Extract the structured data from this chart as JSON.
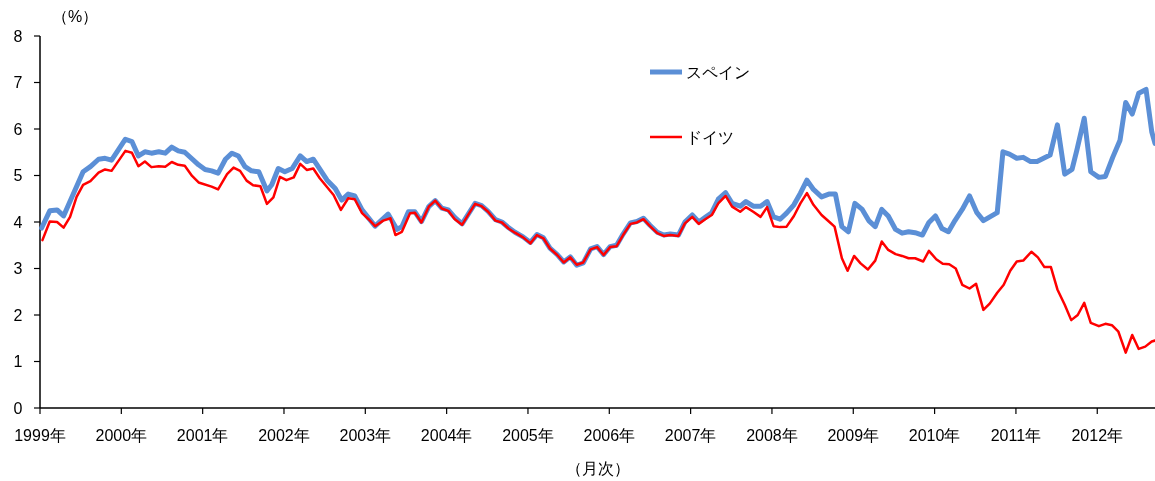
{
  "chart_data": {
    "type": "line",
    "xlabel": "（月次）",
    "ylabel": "（%）",
    "xlim": [
      1999,
      2012.71
    ],
    "xticks": [
      {
        "value": 1999,
        "label": "1999年"
      },
      {
        "value": 2000,
        "label": "2000年"
      },
      {
        "value": 2001,
        "label": "2001年"
      },
      {
        "value": 2002,
        "label": "2002年"
      },
      {
        "value": 2003,
        "label": "2003年"
      },
      {
        "value": 2004,
        "label": "2004年"
      },
      {
        "value": 2005,
        "label": "2005年"
      },
      {
        "value": 2006,
        "label": "2006年"
      },
      {
        "value": 2007,
        "label": "2007年"
      },
      {
        "value": 2008,
        "label": "2008年"
      },
      {
        "value": 2009,
        "label": "2009年"
      },
      {
        "value": 2010,
        "label": "2010年"
      },
      {
        "value": 2011,
        "label": "2011年"
      },
      {
        "value": 2012,
        "label": "2012年"
      }
    ],
    "ylim": [
      0,
      8
    ],
    "yticks": [
      0,
      1,
      2,
      3,
      4,
      5,
      6,
      7,
      8
    ],
    "grid": false,
    "legend": "top right",
    "marker": "none",
    "line_style": "solid",
    "series": [
      {
        "name": "スペイン",
        "color": "#5b8fd6",
        "x": [
          1999.02,
          1999.12,
          1999.21,
          1999.29,
          1999.53,
          1999.62,
          1999.72,
          1999.8,
          1999.88,
          2000.05,
          2000.13,
          2000.21,
          2000.29,
          2000.37,
          2000.46,
          2000.54,
          2000.62,
          2000.7,
          2000.78,
          2000.95,
          2001.03,
          2001.11,
          2001.19,
          2001.28,
          2001.36,
          2001.44,
          2001.52,
          2001.6,
          2001.69,
          2001.79,
          2001.85,
          2001.93,
          2002.01,
          2002.1,
          2002.2,
          2002.28,
          2002.36,
          2002.53,
          2002.63,
          2002.71,
          2002.79,
          2002.87,
          2002.96,
          2003.12,
          2003.2,
          2003.28,
          2003.39,
          2003.45,
          2003.53,
          2003.61,
          2003.69,
          2003.78,
          2003.86,
          2003.94,
          2004.02,
          2004.1,
          2004.19,
          2004.27,
          2004.35,
          2004.43,
          2004.51,
          2004.6,
          2004.68,
          2004.76,
          2004.84,
          2004.94,
          2005.03,
          2005.11,
          2005.19,
          2005.27,
          2005.36,
          2005.44,
          2005.52,
          2005.6,
          2005.68,
          2005.77,
          2005.85,
          2005.93,
          2006.01,
          2006.09,
          2006.17,
          2006.26,
          2006.34,
          2006.42,
          2006.5,
          2006.59,
          2006.67,
          2006.75,
          2006.85,
          2006.93,
          2007.02,
          2007.1,
          2007.18,
          2007.26,
          2007.34,
          2007.43,
          2007.51,
          2007.61,
          2007.68,
          2007.77,
          2007.86,
          2007.94,
          2008.02,
          2008.1,
          2008.18,
          2008.27,
          2008.35,
          2008.43,
          2008.51,
          2008.61,
          2008.7,
          2008.78,
          2008.86,
          2008.94,
          2009.02,
          2009.11,
          2009.19,
          2009.27,
          2009.35,
          2009.43,
          2009.52,
          2009.6,
          2009.68,
          2009.76,
          2009.85,
          2009.93,
          2010.01,
          2010.09,
          2010.17,
          2010.25,
          2010.34,
          2010.43,
          2010.52,
          2010.6,
          2010.68,
          2010.77,
          2010.84,
          2010.92,
          2011.01,
          2011.09,
          2011.18,
          2011.26,
          2011.34,
          2011.42,
          2011.51,
          2011.6,
          2011.69,
          2011.75,
          2011.84,
          2011.92,
          2012.02,
          2012.1,
          2012.19,
          2012.28,
          2012.35,
          2012.43,
          2012.51,
          2012.6,
          2012.67,
          2012.71
        ],
        "values": [
          3.87,
          4.24,
          4.26,
          4.13,
          5.08,
          5.19,
          5.35,
          5.37,
          5.33,
          5.78,
          5.73,
          5.42,
          5.51,
          5.48,
          5.51,
          5.48,
          5.61,
          5.53,
          5.5,
          5.23,
          5.13,
          5.1,
          5.05,
          5.35,
          5.48,
          5.42,
          5.19,
          5.1,
          5.08,
          4.67,
          4.8,
          5.15,
          5.08,
          5.15,
          5.42,
          5.3,
          5.35,
          4.9,
          4.72,
          4.47,
          4.6,
          4.56,
          4.26,
          3.91,
          4.04,
          4.17,
          3.84,
          3.9,
          4.22,
          4.22,
          4.01,
          4.33,
          4.46,
          4.3,
          4.26,
          4.1,
          3.96,
          4.18,
          4.4,
          4.35,
          4.23,
          4.05,
          4.0,
          3.88,
          3.78,
          3.68,
          3.56,
          3.73,
          3.66,
          3.44,
          3.3,
          3.14,
          3.25,
          3.07,
          3.12,
          3.42,
          3.47,
          3.3,
          3.47,
          3.5,
          3.74,
          3.98,
          4.01,
          4.08,
          3.93,
          3.78,
          3.72,
          3.74,
          3.72,
          4.0,
          4.15,
          4.0,
          4.1,
          4.2,
          4.49,
          4.63,
          4.4,
          4.34,
          4.44,
          4.34,
          4.34,
          4.44,
          4.11,
          4.06,
          4.19,
          4.37,
          4.62,
          4.9,
          4.7,
          4.54,
          4.6,
          4.6,
          3.9,
          3.79,
          4.4,
          4.27,
          4.03,
          3.9,
          4.27,
          4.13,
          3.84,
          3.76,
          3.79,
          3.77,
          3.72,
          3.99,
          4.13,
          3.86,
          3.79,
          4.03,
          4.27,
          4.56,
          4.2,
          4.03,
          4.11,
          4.2,
          5.51,
          5.46,
          5.37,
          5.39,
          5.3,
          5.3,
          5.37,
          5.44,
          6.09,
          5.03,
          5.13,
          5.55,
          6.23,
          5.08,
          4.96,
          4.98,
          5.39,
          5.76,
          6.57,
          6.32,
          6.77,
          6.85,
          5.94,
          5.69
        ]
      },
      {
        "name": "ドイツ",
        "color": "#ff0000",
        "x": [
          1999.03,
          1999.12,
          1999.21,
          1999.29,
          1999.37,
          1999.45,
          1999.53,
          1999.62,
          1999.72,
          1999.8,
          1999.88,
          2000.05,
          2000.13,
          2000.21,
          2000.29,
          2000.37,
          2000.46,
          2000.54,
          2000.62,
          2000.7,
          2000.78,
          2000.87,
          2000.95,
          2001.11,
          2001.19,
          2001.3,
          2001.38,
          2001.46,
          2001.54,
          2001.62,
          2001.71,
          2001.79,
          2001.87,
          2001.95,
          2002.03,
          2002.12,
          2002.2,
          2002.28,
          2002.36,
          2002.44,
          2002.61,
          2002.7,
          2002.79,
          2002.87,
          2002.96,
          2003.04,
          2003.12,
          2003.22,
          2003.31,
          2003.37,
          2003.45,
          2003.55,
          2003.61,
          2003.69,
          2003.78,
          2003.86,
          2003.94,
          2004.02,
          2004.1,
          2004.19,
          2004.27,
          2004.35,
          2004.43,
          2004.51,
          2004.6,
          2004.68,
          2004.76,
          2004.84,
          2004.94,
          2005.03,
          2005.11,
          2005.19,
          2005.27,
          2005.36,
          2005.44,
          2005.52,
          2005.6,
          2005.68,
          2005.77,
          2005.85,
          2005.93,
          2006.01,
          2006.09,
          2006.17,
          2006.26,
          2006.34,
          2006.42,
          2006.5,
          2006.59,
          2006.67,
          2006.75,
          2006.85,
          2006.93,
          2007.02,
          2007.1,
          2007.18,
          2007.26,
          2007.34,
          2007.43,
          2007.51,
          2007.61,
          2007.68,
          2007.77,
          2007.86,
          2007.94,
          2008.02,
          2008.1,
          2008.18,
          2008.27,
          2008.35,
          2008.43,
          2008.51,
          2008.61,
          2008.7,
          2008.77,
          2008.86,
          2008.93,
          2009.01,
          2009.09,
          2009.18,
          2009.27,
          2009.35,
          2009.43,
          2009.52,
          2009.6,
          2009.68,
          2009.76,
          2009.86,
          2009.93,
          2010.02,
          2010.1,
          2010.18,
          2010.26,
          2010.34,
          2010.43,
          2010.51,
          2010.6,
          2010.68,
          2010.77,
          2010.85,
          2010.93,
          2011.01,
          2011.09,
          2011.19,
          2011.27,
          2011.35,
          2011.43,
          2011.51,
          2011.6,
          2011.68,
          2011.76,
          2011.84,
          2011.92,
          2012.02,
          2012.1,
          2012.18,
          2012.26,
          2012.35,
          2012.43,
          2012.51,
          2012.59,
          2012.67,
          2012.71
        ],
        "values": [
          3.61,
          4.01,
          4.0,
          3.88,
          4.11,
          4.54,
          4.8,
          4.88,
          5.06,
          5.13,
          5.1,
          5.53,
          5.49,
          5.2,
          5.3,
          5.18,
          5.2,
          5.19,
          5.29,
          5.23,
          5.21,
          4.99,
          4.85,
          4.76,
          4.7,
          5.03,
          5.17,
          5.1,
          4.89,
          4.79,
          4.77,
          4.39,
          4.53,
          4.97,
          4.9,
          4.96,
          5.25,
          5.12,
          5.15,
          4.94,
          4.58,
          4.26,
          4.51,
          4.49,
          4.19,
          4.06,
          3.91,
          4.03,
          4.08,
          3.72,
          3.79,
          4.19,
          4.2,
          3.99,
          4.33,
          4.46,
          4.29,
          4.24,
          4.06,
          3.94,
          4.17,
          4.39,
          4.34,
          4.22,
          4.03,
          3.99,
          3.86,
          3.77,
          3.67,
          3.54,
          3.72,
          3.65,
          3.43,
          3.29,
          3.13,
          3.24,
          3.08,
          3.13,
          3.41,
          3.46,
          3.29,
          3.46,
          3.48,
          3.72,
          3.96,
          3.99,
          4.06,
          3.91,
          3.76,
          3.7,
          3.72,
          3.7,
          3.97,
          4.11,
          3.96,
          4.06,
          4.15,
          4.4,
          4.56,
          4.33,
          4.22,
          4.32,
          4.22,
          4.11,
          4.32,
          3.91,
          3.89,
          3.9,
          4.13,
          4.4,
          4.62,
          4.37,
          4.15,
          4.01,
          3.9,
          3.22,
          2.95,
          3.27,
          3.11,
          2.98,
          3.17,
          3.58,
          3.4,
          3.31,
          3.27,
          3.22,
          3.22,
          3.15,
          3.38,
          3.2,
          3.1,
          3.09,
          3.0,
          2.65,
          2.57,
          2.67,
          2.11,
          2.25,
          2.48,
          2.65,
          2.95,
          3.15,
          3.17,
          3.36,
          3.24,
          3.03,
          3.03,
          2.55,
          2.22,
          1.89,
          2.0,
          2.26,
          1.83,
          1.76,
          1.81,
          1.78,
          1.64,
          1.19,
          1.57,
          1.27,
          1.32,
          1.43,
          1.45
        ]
      }
    ]
  }
}
